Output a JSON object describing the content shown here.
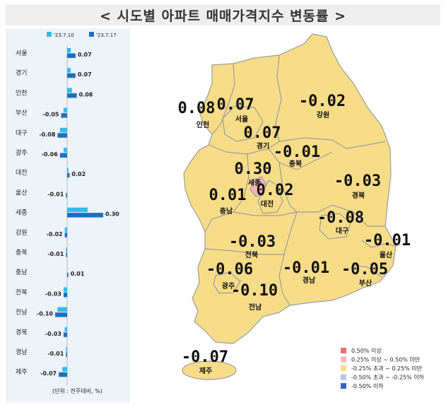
{
  "title": "< 시도별 아파트 매매가격지수 변동률 >",
  "chart_data": {
    "type": "bar",
    "orientation": "horizontal",
    "categories": [
      "서울",
      "경기",
      "인천",
      "부산",
      "대구",
      "광주",
      "대전",
      "울산",
      "세종",
      "강원",
      "충북",
      "충남",
      "전북",
      "전남",
      "경북",
      "경남",
      "제주"
    ],
    "series": [
      {
        "name": "'23.7.10",
        "color": "#33bbee",
        "values": [
          0.03,
          0.03,
          0.04,
          -0.03,
          -0.06,
          -0.03,
          0.01,
          0.0,
          0.17,
          -0.02,
          -0.01,
          0.0,
          -0.03,
          -0.08,
          -0.02,
          -0.01,
          -0.04
        ]
      },
      {
        "name": "'23.7.17",
        "color": "#1f6fc0",
        "values": [
          0.07,
          0.07,
          0.08,
          -0.05,
          -0.08,
          -0.06,
          0.02,
          -0.01,
          0.3,
          -0.02,
          -0.01,
          0.01,
          -0.03,
          -0.1,
          -0.03,
          -0.01,
          -0.07
        ]
      }
    ],
    "value_labels": [
      "0.07",
      "0.07",
      "0.08",
      "-0.05",
      "-0.08",
      "-0.06",
      "0.02",
      "-0.01",
      "0.30",
      "-0.02",
      "-0.01",
      "0.01",
      "-0.03",
      "-0.10",
      "-0.03",
      "-0.01",
      "-0.07"
    ],
    "unit_note": "(단위 : 전주대비, %)"
  },
  "map": {
    "regions": [
      {
        "name": "인천",
        "value": "0.08",
        "color": "#f7dc88"
      },
      {
        "name": "서울",
        "value": "0.07",
        "color": "#f7dc88"
      },
      {
        "name": "경기",
        "value": "0.07",
        "color": "#f7dc88"
      },
      {
        "name": "강원",
        "value": "-0.02",
        "color": "#f7dc88"
      },
      {
        "name": "충북",
        "value": "-0.01",
        "color": "#f7dc88"
      },
      {
        "name": "세종",
        "value": "0.30",
        "color": "#f4b6b8"
      },
      {
        "name": "대전",
        "value": "0.02",
        "color": "#f7dc88"
      },
      {
        "name": "충남",
        "value": "0.01",
        "color": "#f7dc88"
      },
      {
        "name": "경북",
        "value": "-0.03",
        "color": "#f7dc88"
      },
      {
        "name": "대구",
        "value": "-0.08",
        "color": "#f7dc88"
      },
      {
        "name": "전북",
        "value": "-0.03",
        "color": "#f7dc88"
      },
      {
        "name": "울산",
        "value": "-0.01",
        "color": "#f7dc88"
      },
      {
        "name": "광주",
        "value": "-0.06",
        "color": "#f7dc88"
      },
      {
        "name": "경남",
        "value": "-0.01",
        "color": "#f7dc88"
      },
      {
        "name": "부산",
        "value": "-0.05",
        "color": "#f7dc88"
      },
      {
        "name": "전남",
        "value": "-0.10",
        "color": "#f7dc88"
      },
      {
        "name": "제주",
        "value": "-0.07",
        "color": "#f7dc88"
      }
    ],
    "legend": [
      {
        "label": "0.50% 이상",
        "color": "#ee6f73"
      },
      {
        "label": "0.25% 이상 ~ 0.50% 미만",
        "color": "#f4b6b8"
      },
      {
        "label": "-0.25% 초과 ~ 0.25% 미만",
        "color": "#f7dc88"
      },
      {
        "label": "-0.50% 초과 ~ -0.25% 이하",
        "color": "#b3c7e8"
      },
      {
        "label": "-0.50% 이하",
        "color": "#3a5fc0"
      }
    ]
  }
}
